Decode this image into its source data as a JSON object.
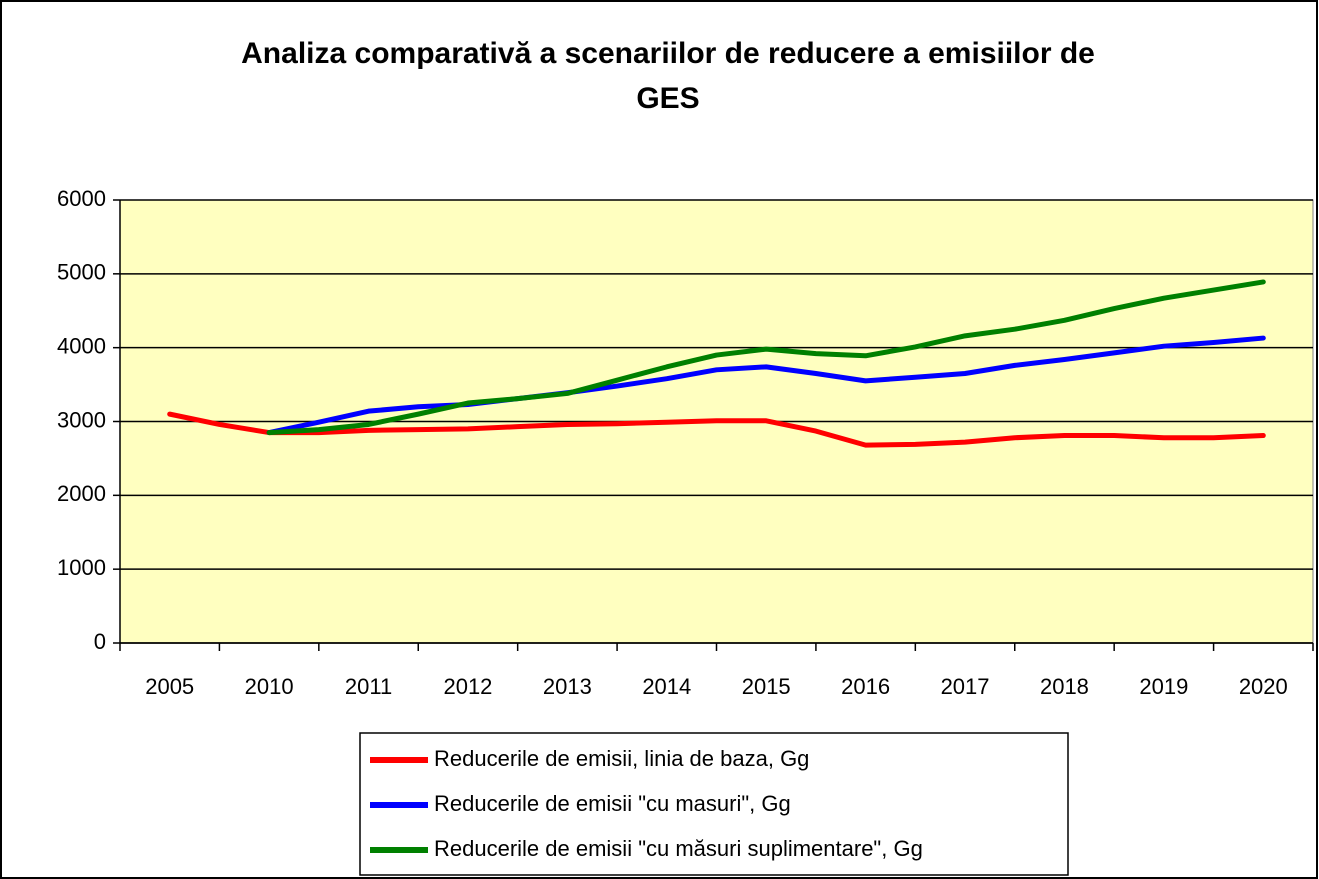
{
  "chart_data": {
    "type": "line",
    "title": [
      "Analiza comparativă a scenariilor de reducere a emisiilor de",
      "GES"
    ],
    "categories": [
      "2005",
      null,
      "2010",
      null,
      "2011",
      null,
      "2012",
      null,
      "2013",
      null,
      "2014",
      null,
      "2015",
      null,
      "2016",
      null,
      "2017",
      null,
      "2018",
      null,
      "2019",
      null,
      "2020"
    ],
    "series": [
      {
        "name": "Reducerile de emisii, linia de baza, Gg",
        "color": "#ff0000",
        "values": [
          3100,
          2960,
          2850,
          2850,
          2880,
          2890,
          2900,
          2930,
          2960,
          2970,
          2990,
          3010,
          3010,
          2870,
          2680,
          2690,
          2720,
          2780,
          2810,
          2810,
          2780,
          2780,
          2810
        ]
      },
      {
        "name": "Reducerile de emisii \"cu masuri\", Gg",
        "color": "#0000ff",
        "values": [
          null,
          null,
          2850,
          2990,
          3140,
          3200,
          3230,
          3310,
          3390,
          3480,
          3580,
          3700,
          3740,
          3650,
          3550,
          3600,
          3650,
          3760,
          3840,
          3930,
          4020,
          4070,
          4130
        ]
      },
      {
        "name": "Reducerile de emisii \"cu măsuri suplimentare\", Gg",
        "color": "#008000",
        "values": [
          null,
          null,
          2850,
          2890,
          2960,
          3100,
          3250,
          3310,
          3380,
          3560,
          3740,
          3900,
          3980,
          3920,
          3890,
          4010,
          4160,
          4250,
          4370,
          4530,
          4670,
          4780,
          4890
        ]
      }
    ],
    "ylim": [
      0,
      6000
    ],
    "yticks": [
      0,
      1000,
      2000,
      3000,
      4000,
      5000,
      6000
    ],
    "grid": true,
    "legend": "bottom",
    "background": "#ffffc0"
  }
}
